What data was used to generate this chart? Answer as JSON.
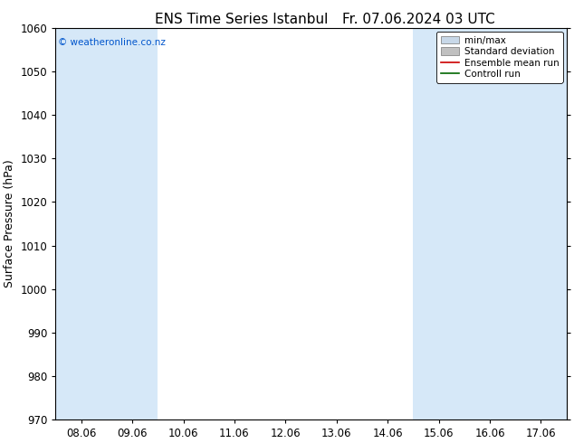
{
  "title": "ENS Time Series Istanbul",
  "title2": "Fr. 07.06.2024 03 UTC",
  "ylabel": "Surface Pressure (hPa)",
  "ylim": [
    970,
    1060
  ],
  "yticks": [
    970,
    980,
    990,
    1000,
    1010,
    1020,
    1030,
    1040,
    1050,
    1060
  ],
  "xtick_labels": [
    "08.06",
    "09.06",
    "10.06",
    "11.06",
    "12.06",
    "13.06",
    "14.06",
    "15.06",
    "16.06",
    "17.06"
  ],
  "band_color": "#d6e8f8",
  "watermark": "© weatheronline.co.nz",
  "watermark_color": "#0055cc",
  "bg_color": "#ffffff",
  "legend_entries": [
    "min/max",
    "Standard deviation",
    "Ensemble mean run",
    "Controll run"
  ],
  "title_fontsize": 11,
  "tick_fontsize": 8.5,
  "label_fontsize": 9
}
